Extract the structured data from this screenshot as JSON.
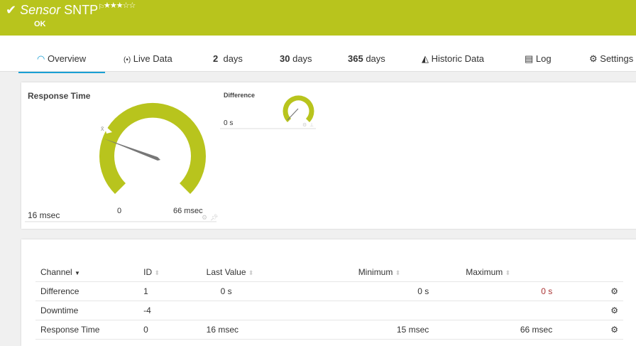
{
  "header": {
    "title_prefix": "Sensor",
    "title": "SNTP",
    "status": "OK",
    "stars": "★★★☆☆",
    "priority_rating": 3,
    "flag_icon": "flag-icon",
    "color": "#b8c41d"
  },
  "tabs": [
    {
      "label": "Overview",
      "icon": "gauge-icon"
    },
    {
      "label": "Live Data",
      "icon": "broadcast-icon"
    },
    {
      "num": "2",
      "label": "days"
    },
    {
      "num": "30",
      "label": "days"
    },
    {
      "num": "365",
      "label": "days"
    },
    {
      "label": "Historic Data",
      "icon": "area-chart-icon"
    },
    {
      "label": "Log",
      "icon": "list-icon"
    },
    {
      "label": "Settings",
      "icon": "gear-icon"
    }
  ],
  "gauges": {
    "response": {
      "title": "Response Time",
      "value": "16 msec",
      "min": "0",
      "max": "66 msec",
      "value_num": 16,
      "max_num": 66,
      "avg_marker": "x̄"
    },
    "difference": {
      "title": "Difference",
      "value": "0 s"
    }
  },
  "table": {
    "headers": [
      "Channel",
      "ID",
      "Last Value",
      "Minimum",
      "Maximum"
    ],
    "rows": [
      {
        "channel": "Difference",
        "id": "1",
        "last": "0 s",
        "min": "0 s",
        "max": "0 s"
      },
      {
        "channel": "Downtime",
        "id": "-4",
        "last": "",
        "min": "",
        "max": ""
      },
      {
        "channel": "Response Time",
        "id": "0",
        "last": "16 msec",
        "min": "15 msec",
        "max": "66 msec"
      }
    ]
  }
}
